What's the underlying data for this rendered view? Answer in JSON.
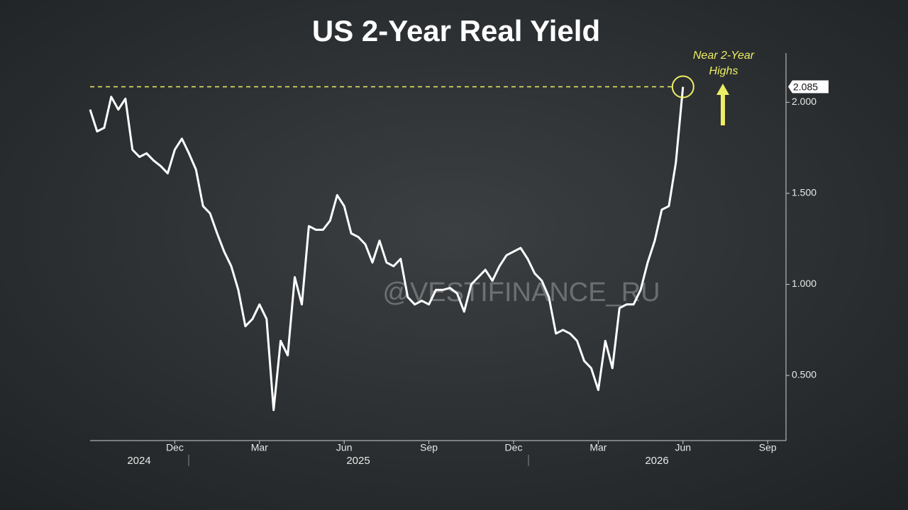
{
  "chart_data": {
    "type": "line",
    "title": "US 2-Year Real Yield",
    "annotation": "Near 2-Year Highs",
    "watermark": "@VESTIFINANCE_RU",
    "color": "#ffffff",
    "annotation_color": "#eeee66",
    "categories": [
      null,
      null,
      null,
      null,
      null,
      null,
      null,
      null,
      null,
      null,
      null,
      null,
      "Dec",
      null,
      null,
      null,
      null,
      null,
      null,
      null,
      null,
      null,
      null,
      null,
      "Mar",
      null,
      null,
      null,
      null,
      null,
      null,
      null,
      null,
      null,
      null,
      null,
      "Jun",
      null,
      null,
      null,
      null,
      null,
      null,
      null,
      null,
      null,
      null,
      null,
      "Sep",
      null,
      null,
      null,
      null,
      null,
      null,
      null,
      null,
      null,
      null,
      null,
      "Dec",
      null,
      null,
      null,
      null,
      null,
      null,
      null,
      null,
      null,
      null,
      null,
      "Mar",
      null,
      null,
      null,
      null,
      null,
      null,
      null,
      null,
      null,
      null,
      null,
      "Jun",
      null,
      null,
      null,
      null,
      null,
      null,
      null,
      null,
      null,
      null,
      null,
      "Sep"
    ],
    "values": [
      1.96,
      1.84,
      1.86,
      2.03,
      1.96,
      2.02,
      1.74,
      1.7,
      1.72,
      1.68,
      1.65,
      1.61,
      1.74,
      1.8,
      1.72,
      1.63,
      1.43,
      1.39,
      1.28,
      1.18,
      1.1,
      0.97,
      0.77,
      0.81,
      0.89,
      0.81,
      0.31,
      0.69,
      0.61,
      1.04,
      0.89,
      1.32,
      1.3,
      1.3,
      1.35,
      1.49,
      1.43,
      1.28,
      1.26,
      1.22,
      1.12,
      1.24,
      1.12,
      1.1,
      1.14,
      0.93,
      0.89,
      0.91,
      0.89,
      0.97,
      0.97,
      0.98,
      0.95,
      0.85,
      1.0,
      1.04,
      1.08,
      1.02,
      1.1,
      1.16,
      1.18,
      1.2,
      1.14,
      1.06,
      1.02,
      0.93,
      0.73,
      0.75,
      0.73,
      0.69,
      0.58,
      0.54,
      0.42,
      0.69,
      0.54,
      0.87,
      0.89,
      0.89,
      0.97,
      1.12,
      1.24,
      1.41,
      1.43,
      1.67,
      2.085,
      null,
      null,
      null,
      null,
      null,
      null,
      null,
      null,
      null,
      null,
      null,
      null
    ],
    "years": [
      "2024",
      "2025",
      "2026"
    ],
    "reference": {
      "value": 2.085,
      "label": "2.085"
    },
    "ylim": [
      0.15,
      2.27
    ],
    "yticks": [
      {
        "value": 0.5,
        "label": "0.500"
      },
      {
        "value": 1.0,
        "label": "1.000"
      },
      {
        "value": 1.5,
        "label": "1.500"
      },
      {
        "value": 2.0,
        "label": "2.000"
      }
    ],
    "y_axis_side": "right"
  }
}
